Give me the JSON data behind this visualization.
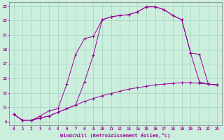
{
  "xlabel": "Windchill (Refroidissement éolien,°C)",
  "background_color": "#cceedd",
  "line_color": "#990099",
  "xlim": [
    -0.5,
    23.5
  ],
  "ylim": [
    8.5,
    25.5
  ],
  "yticks": [
    9,
    11,
    13,
    15,
    17,
    19,
    21,
    23,
    25
  ],
  "xticks": [
    0,
    1,
    2,
    3,
    4,
    5,
    6,
    7,
    8,
    9,
    10,
    11,
    12,
    13,
    14,
    15,
    16,
    17,
    18,
    19,
    20,
    21,
    22,
    23
  ],
  "line1_x": [
    0,
    1,
    2,
    3,
    4,
    5,
    6,
    7,
    8,
    9,
    10,
    11,
    12,
    13,
    14,
    15,
    16,
    17,
    18,
    19,
    20,
    21,
    22,
    23
  ],
  "line1_y": [
    10.0,
    9.2,
    9.2,
    9.5,
    9.8,
    10.3,
    10.8,
    11.3,
    11.8,
    12.2,
    12.6,
    12.9,
    13.2,
    13.5,
    13.7,
    13.9,
    14.1,
    14.2,
    14.3,
    14.4,
    14.4,
    14.3,
    14.2,
    14.1
  ],
  "line2_x": [
    0,
    1,
    2,
    3,
    4,
    5,
    6,
    7,
    8,
    9,
    10,
    11,
    12,
    13,
    14,
    15,
    16,
    17,
    18,
    19,
    20,
    21,
    22,
    23
  ],
  "line2_y": [
    10.0,
    9.2,
    9.2,
    9.8,
    10.5,
    10.8,
    14.2,
    18.3,
    20.5,
    20.8,
    23.1,
    23.5,
    23.7,
    23.8,
    24.2,
    24.9,
    24.9,
    24.5,
    23.7,
    23.1,
    18.5,
    14.5,
    14.2,
    14.1
  ],
  "line3_x": [
    0,
    1,
    2,
    3,
    4,
    5,
    6,
    7,
    8,
    9,
    10,
    11,
    12,
    13,
    14,
    15,
    16,
    17,
    18,
    19,
    20,
    21,
    22,
    23
  ],
  "line3_y": [
    10.0,
    9.2,
    9.2,
    9.5,
    9.8,
    10.3,
    10.8,
    11.3,
    14.5,
    18.2,
    23.1,
    23.5,
    23.7,
    23.8,
    24.2,
    24.9,
    24.9,
    24.5,
    23.7,
    23.1,
    18.5,
    18.3,
    14.2,
    14.1
  ]
}
